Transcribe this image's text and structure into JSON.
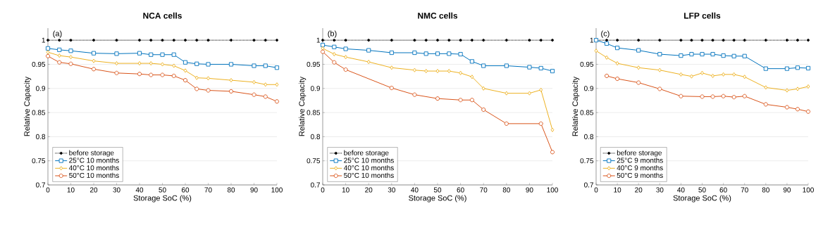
{
  "chart_data": [
    {
      "type": "line",
      "title": "NCA cells",
      "xlabel": "Storage SoC (%)",
      "ylabel": "Relative Capacity",
      "annotations": [
        "(a)"
      ],
      "xlim": [
        0,
        100
      ],
      "ylim": [
        0.7,
        1.025
      ],
      "xticks": [
        0,
        10,
        20,
        30,
        40,
        50,
        60,
        70,
        80,
        90,
        100
      ],
      "yticks": [
        0.7,
        0.75,
        0.8,
        0.85,
        0.9,
        0.95,
        1
      ],
      "grid": "y",
      "legend": "bottom left",
      "series": [
        {
          "name": "before storage",
          "color": "#000000",
          "marker": "circle",
          "line_style": "dotted",
          "x": [
            0,
            5,
            10,
            20,
            30,
            40,
            45,
            50,
            55,
            60,
            65,
            70,
            80,
            90,
            95,
            100
          ],
          "values": [
            1,
            1,
            1,
            1,
            1,
            1,
            1,
            1,
            1,
            1,
            1,
            1,
            1,
            1,
            1,
            1
          ]
        },
        {
          "name": "25°C  10 months",
          "color": "#0072bd",
          "marker": "square",
          "line_style": "solid",
          "x": [
            0,
            5,
            10,
            20,
            30,
            40,
            45,
            50,
            55,
            60,
            65,
            70,
            80,
            90,
            95,
            100
          ],
          "values": [
            0.983,
            0.98,
            0.978,
            0.973,
            0.972,
            0.973,
            0.97,
            0.97,
            0.97,
            0.954,
            0.951,
            0.95,
            0.95,
            0.947,
            0.947,
            0.943
          ]
        },
        {
          "name": "40°C  10 months",
          "color": "#edb120",
          "marker": "diamond",
          "line_style": "solid",
          "x": [
            0,
            5,
            10,
            20,
            30,
            40,
            45,
            50,
            55,
            60,
            65,
            70,
            80,
            90,
            95,
            100
          ],
          "values": [
            0.975,
            0.968,
            0.965,
            0.957,
            0.952,
            0.952,
            0.952,
            0.95,
            0.947,
            0.937,
            0.922,
            0.921,
            0.917,
            0.913,
            0.908,
            0.908
          ]
        },
        {
          "name": "50°C  10 months",
          "color": "#d95319",
          "marker": "circle",
          "line_style": "solid",
          "x": [
            0,
            5,
            10,
            20,
            30,
            40,
            45,
            50,
            55,
            60,
            65,
            70,
            80,
            90,
            95,
            100
          ],
          "values": [
            0.967,
            0.954,
            0.951,
            0.94,
            0.932,
            0.93,
            0.928,
            0.928,
            0.926,
            0.917,
            0.899,
            0.896,
            0.894,
            0.887,
            0.883,
            0.873
          ]
        }
      ]
    },
    {
      "type": "line",
      "title": "NMC cells",
      "xlabel": "Storage SoC (%)",
      "ylabel": "Relative Capacity",
      "annotations": [
        "(b)"
      ],
      "xlim": [
        0,
        100
      ],
      "ylim": [
        0.7,
        1.025
      ],
      "xticks": [
        0,
        10,
        20,
        30,
        40,
        50,
        60,
        70,
        80,
        90,
        100
      ],
      "yticks": [
        0.7,
        0.75,
        0.8,
        0.85,
        0.9,
        0.95,
        1
      ],
      "grid": "y",
      "legend": "bottom left",
      "series": [
        {
          "name": "before storage",
          "color": "#000000",
          "marker": "circle",
          "line_style": "dotted",
          "x": [
            0,
            5,
            10,
            20,
            30,
            40,
            45,
            50,
            55,
            60,
            65,
            70,
            80,
            90,
            95,
            100
          ],
          "values": [
            1,
            1,
            1,
            1,
            1,
            1,
            1,
            1,
            1,
            1,
            1,
            1,
            1,
            1,
            1,
            1
          ]
        },
        {
          "name": "25°C  10 months",
          "color": "#0072bd",
          "marker": "square",
          "line_style": "solid",
          "x": [
            0,
            5,
            10,
            20,
            30,
            40,
            45,
            50,
            55,
            60,
            65,
            70,
            80,
            90,
            95,
            100
          ],
          "values": [
            0.99,
            0.986,
            0.982,
            0.979,
            0.974,
            0.974,
            0.972,
            0.972,
            0.972,
            0.971,
            0.956,
            0.947,
            0.947,
            0.944,
            0.942,
            0.936
          ]
        },
        {
          "name": "40°C  10 months",
          "color": "#edb120",
          "marker": "diamond",
          "line_style": "solid",
          "x": [
            0,
            5,
            10,
            20,
            30,
            40,
            45,
            50,
            55,
            60,
            65,
            70,
            80,
            90,
            95,
            100
          ],
          "values": [
            0.983,
            0.971,
            0.965,
            0.955,
            0.943,
            0.938,
            0.936,
            0.936,
            0.936,
            0.932,
            0.924,
            0.9,
            0.89,
            0.89,
            0.897,
            0.814
          ]
        },
        {
          "name": "50°C  10 months",
          "color": "#d95319",
          "marker": "circle",
          "line_style": "solid",
          "x": [
            0,
            5,
            10,
            30,
            40,
            50,
            60,
            65,
            70,
            80,
            95,
            100
          ],
          "values": [
            0.976,
            0.954,
            0.939,
            0.901,
            0.887,
            0.879,
            0.876,
            0.876,
            0.856,
            0.827,
            0.827,
            0.768
          ]
        }
      ]
    },
    {
      "type": "line",
      "title": "LFP cells",
      "xlabel": "Storage SoC (%)",
      "ylabel": "Relative Capacity",
      "annotations": [
        "(c)"
      ],
      "xlim": [
        0,
        100
      ],
      "ylim": [
        0.7,
        1.025
      ],
      "xticks": [
        0,
        10,
        20,
        30,
        40,
        50,
        60,
        70,
        80,
        90,
        100
      ],
      "yticks": [
        0.7,
        0.75,
        0.8,
        0.85,
        0.9,
        0.95,
        1
      ],
      "grid": "y",
      "legend": "bottom left",
      "series": [
        {
          "name": "before storage",
          "color": "#000000",
          "marker": "circle",
          "line_style": "dotted",
          "x": [
            0,
            5,
            10,
            20,
            30,
            40,
            45,
            50,
            55,
            60,
            65,
            70,
            80,
            90,
            95,
            100
          ],
          "values": [
            1,
            1,
            1,
            1,
            1,
            1,
            1,
            1,
            1,
            1,
            1,
            1,
            1,
            1,
            1,
            1
          ]
        },
        {
          "name": "25°C  9 months",
          "color": "#0072bd",
          "marker": "square",
          "line_style": "solid",
          "x": [
            0,
            5,
            10,
            20,
            30,
            40,
            45,
            50,
            55,
            60,
            65,
            70,
            80,
            90,
            95,
            100
          ],
          "values": [
            1,
            0.993,
            0.984,
            0.979,
            0.971,
            0.968,
            0.971,
            0.971,
            0.971,
            0.968,
            0.967,
            0.967,
            0.941,
            0.941,
            0.943,
            0.942
          ]
        },
        {
          "name": "40°C  9 months",
          "color": "#edb120",
          "marker": "diamond",
          "line_style": "solid",
          "x": [
            0,
            5,
            10,
            20,
            30,
            40,
            45,
            50,
            55,
            60,
            65,
            70,
            80,
            90,
            95,
            100
          ],
          "values": [
            0.978,
            0.964,
            0.952,
            0.943,
            0.938,
            0.929,
            0.925,
            0.932,
            0.926,
            0.929,
            0.929,
            0.924,
            0.902,
            0.896,
            0.899,
            0.904
          ]
        },
        {
          "name": "50°C  9 months",
          "color": "#d95319",
          "marker": "circle",
          "line_style": "solid",
          "x": [
            5,
            10,
            20,
            30,
            40,
            50,
            55,
            60,
            65,
            70,
            80,
            90,
            95,
            100
          ],
          "values": [
            0.926,
            0.92,
            0.912,
            0.899,
            0.884,
            0.883,
            0.883,
            0.884,
            0.882,
            0.884,
            0.867,
            0.861,
            0.857,
            0.852
          ]
        }
      ]
    }
  ]
}
